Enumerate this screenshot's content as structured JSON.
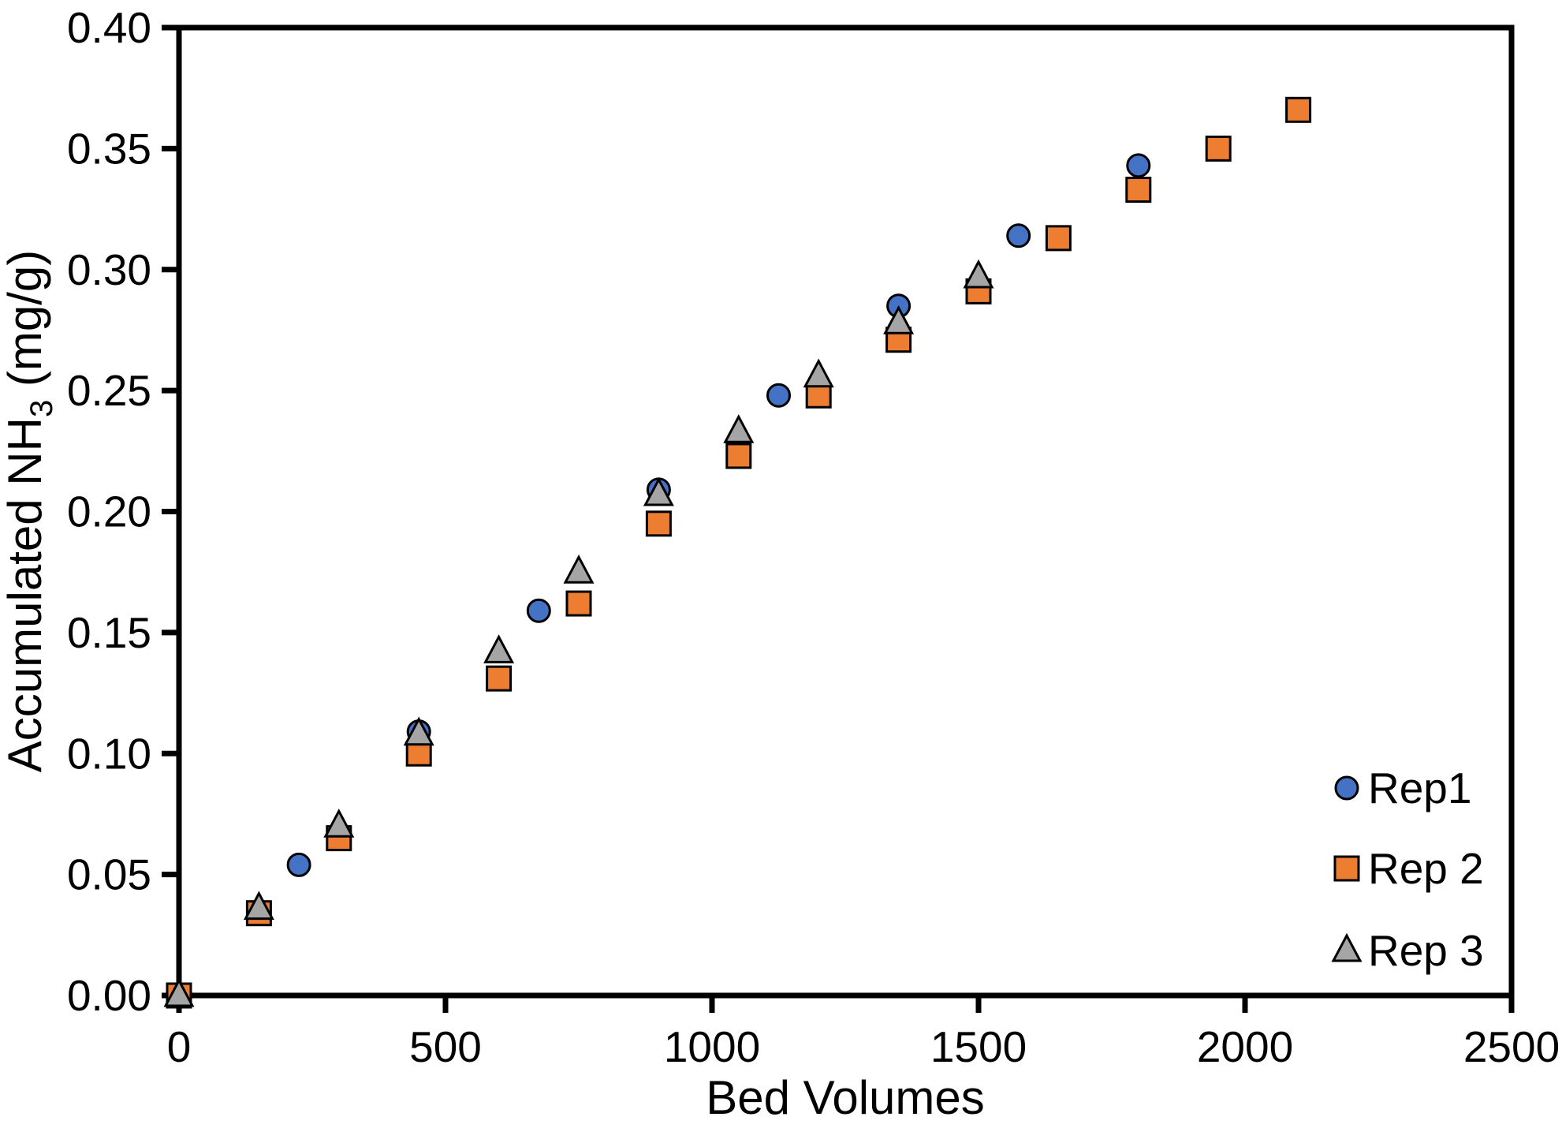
{
  "chart_data": {
    "type": "scatter",
    "title": "",
    "xlabel": "Bed Volumes",
    "ylabel": "Accumulated NH3 (mg/g)",
    "ylabel_parts": {
      "prefix": "Accumulated NH",
      "sub": "3",
      "suffix": " (mg/g)"
    },
    "xlim": [
      0,
      2500
    ],
    "ylim": [
      0,
      0.4
    ],
    "xtick_values": [
      0,
      500,
      1000,
      1500,
      2000,
      2500
    ],
    "xtick_labels": [
      "0",
      "500",
      "1000",
      "1500",
      "2000",
      "2500"
    ],
    "ytick_values": [
      0.0,
      0.05,
      0.1,
      0.15,
      0.2,
      0.25,
      0.3,
      0.35,
      0.4
    ],
    "ytick_labels": [
      "0.00",
      "0.05",
      "0.10",
      "0.15",
      "0.20",
      "0.25",
      "0.30",
      "0.35",
      "0.40"
    ],
    "grid": false,
    "legend_position": "inside-bottom-right",
    "axis_color": "#000000",
    "marker_outline_color": "#000000",
    "background_color": "#FFFFFF",
    "series": [
      {
        "name": "Rep1",
        "marker": "circle",
        "color": "#4472C4",
        "points": [
          [
            0,
            0.0
          ],
          [
            225,
            0.054
          ],
          [
            450,
            0.109
          ],
          [
            675,
            0.159
          ],
          [
            900,
            0.209
          ],
          [
            1125,
            0.248
          ],
          [
            1350,
            0.285
          ],
          [
            1575,
            0.314
          ],
          [
            1800,
            0.343
          ]
        ]
      },
      {
        "name": "Rep 2",
        "marker": "square",
        "color": "#ED7D31",
        "points": [
          [
            0,
            0.0
          ],
          [
            150,
            0.034
          ],
          [
            300,
            0.065
          ],
          [
            450,
            0.1
          ],
          [
            600,
            0.131
          ],
          [
            750,
            0.162
          ],
          [
            900,
            0.195
          ],
          [
            1050,
            0.223
          ],
          [
            1200,
            0.248
          ],
          [
            1350,
            0.271
          ],
          [
            1500,
            0.291
          ],
          [
            1650,
            0.313
          ],
          [
            1800,
            0.333
          ],
          [
            1950,
            0.35
          ],
          [
            2100,
            0.366
          ]
        ]
      },
      {
        "name": "Rep 3",
        "marker": "triangle",
        "color": "#A5A5A5",
        "points": [
          [
            0,
            0.0
          ],
          [
            150,
            0.036
          ],
          [
            300,
            0.07
          ],
          [
            450,
            0.108
          ],
          [
            600,
            0.142
          ],
          [
            750,
            0.175
          ],
          [
            900,
            0.207
          ],
          [
            1050,
            0.233
          ],
          [
            1200,
            0.256
          ],
          [
            1350,
            0.278
          ],
          [
            1500,
            0.297
          ]
        ]
      }
    ]
  }
}
